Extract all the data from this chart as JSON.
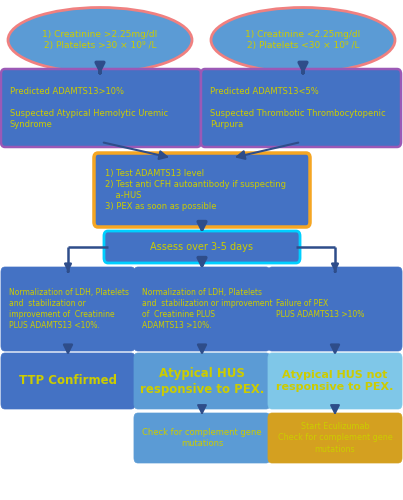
{
  "bg_color": "#ffffff",
  "text_color": "#cccc00",
  "box_color_dark": "#4472c4",
  "box_color_mid": "#5b9bd5",
  "box_color_light": "#7fc7e8",
  "ellipse_fill": "#5b9bd5",
  "ellipse_edge": "#f08080",
  "arrow_color": "#2e4d8a",
  "orange_border": "#f5a623",
  "cyan_border": "#00cfff",
  "purple_border": "#9b59b6",
  "ellipse1_text": "1) Creatinine >2.25mg/dl\n2) Platelets >30 × 10⁹ /L",
  "ellipse2_text": "1) Creatinine <2.25mg/dl\n2) Platelets <30 × 10⁹ /L",
  "box_aHUS_text": "Predicted ADAMTS13>10%\n\nSuspected Atypical Hemolytic Uremic\nSyndrome",
  "box_TTP_text": "Predicted ADAMTS13<5%\n\nSuspected Thrombotic Thrombocytopenic\nPurpura",
  "box_test_text": "1) Test ADAMTS13 level\n2) Test anti CFH autoantibody if suspecting\n    a-HUS\n3) PEX as soon as possible",
  "box_assess_text": "Assess over 3-5 days",
  "box_norm1_text": "Normalization of LDH, Platelets\nand  stabilization or\nimprovement of  Creatinine\nPLUS ADAMTS13 <10%.",
  "box_norm2_text": "Normalization of LDH, Platelets\nand  stabilization or improvement\nof  Creatinine PLUS\nADAMTS13 >10%.",
  "box_fail_text": "Failure of PEX\nPLUS ADAMTS13 >10%",
  "box_ttp_text": "TTP Confirmed",
  "box_ahus_resp_text": "Atypical HUS\nresponsive to PEX.",
  "box_ahus_noresp_text": "Atypical HUS not\nresponsive to PEX.",
  "box_comp1_text": "Check for complement gene\nmutations",
  "box_ecu_text": "Start Eculizumab\nCheck for complement gene\nmutations",
  "figw": 4.03,
  "figh": 5.0,
  "dpi": 100
}
